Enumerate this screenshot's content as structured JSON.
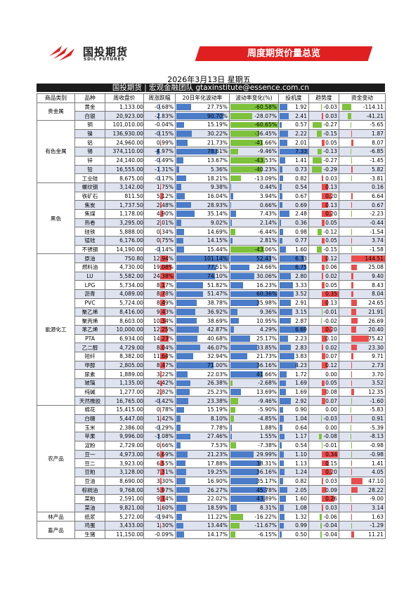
{
  "brand": {
    "name_cn": "国投期货",
    "name_en": "SDIC FUTURES",
    "color": "#e02020"
  },
  "report": {
    "title": "周度期货价量总览",
    "date": "2026年3月13日 星期五",
    "subtitle": "国投期货 | 宏观金融团队 gtaxinstitute@essence.com.cn"
  },
  "table": {
    "headers": [
      "商品类别",
      "品种",
      "周收盘价",
      "周涨跌幅",
      "20日年化波动率",
      "波动率变化(%)",
      "投机度",
      "趋势度",
      "资金变动"
    ],
    "groups": [
      {
        "category": "贵金属",
        "rows": [
          {
            "name": "黄金",
            "close": "1,133.00",
            "chg": "-0.68%",
            "vol": "27.75%",
            "volchg": "-60.58%",
            "spec": "1.92",
            "trend": "-0.03",
            "fund": "-114.11"
          },
          {
            "name": "白银",
            "close": "20,923.00",
            "chg": "-2.83%",
            "vol": "90.70%",
            "volchg": "-28.07%",
            "spec": "2.41",
            "trend": "0.03",
            "fund": "-41.21"
          }
        ]
      },
      {
        "category": "有色金属",
        "rows": [
          {
            "name": "铜",
            "close": "101,010.00",
            "chg": "-0.04%",
            "vol": "15.19%",
            "volchg": "-60.65%",
            "spec": "0.57",
            "trend": "-0.27",
            "fund": "-5.65"
          },
          {
            "name": "镍",
            "close": "136,930.00",
            "chg": "-0.15%",
            "vol": "30.22%",
            "volchg": "-36.45%",
            "spec": "2.22",
            "trend": "-0.15",
            "fund": "1.87"
          },
          {
            "name": "铝",
            "close": "24,960.00",
            "chg": "0.99%",
            "vol": "21.73%",
            "volchg": "-41.66%",
            "spec": "2.01",
            "trend": "0.05",
            "fund": "8.07"
          },
          {
            "name": "锡",
            "close": "374,110.00",
            "chg": "-4.97%",
            "vol": "78.61%",
            "volchg": "-9.46%",
            "spec": "7.33",
            "trend": "-0.13",
            "fund": "-6.85"
          },
          {
            "name": "锌",
            "close": "24,140.00",
            "chg": "-0.49%",
            "vol": "13.67%",
            "volchg": "-43.53%",
            "spec": "1.41",
            "trend": "-0.27",
            "fund": "-1.45"
          },
          {
            "name": "铅",
            "close": "16,555.00",
            "chg": "-1.31%",
            "vol": "5.36%",
            "volchg": "-40.23%",
            "spec": "0.73",
            "trend": "-0.29",
            "fund": "5.82"
          },
          {
            "name": "工业硅",
            "close": "8,675.00",
            "chg": "-0.17%",
            "vol": "18.21%",
            "volchg": "-13.09%",
            "spec": "0.82",
            "trend": "0.03",
            "fund": "-3.81"
          }
        ]
      },
      {
        "category": "黑色",
        "rows": [
          {
            "name": "螺纹钢",
            "close": "3,142.00",
            "chg": "1.75%",
            "vol": "9.38%",
            "volchg": "0.44%",
            "spec": "0.54",
            "trend": "0.13",
            "fund": "0.16"
          },
          {
            "name": "铁矿石",
            "close": "811.50",
            "chg": "5.12%",
            "vol": "16.04%",
            "volchg": "3.94%",
            "spec": "0.67",
            "trend": "0.20",
            "fund": "6.64"
          },
          {
            "name": "焦炭",
            "close": "1,737.50",
            "chg": "2.48%",
            "vol": "28.93%",
            "volchg": "0.66%",
            "spec": "0.69",
            "trend": "0.13",
            "fund": "0.67"
          },
          {
            "name": "焦煤",
            "close": "1,178.00",
            "chg": "4.90%",
            "vol": "35.14%",
            "volchg": "7.43%",
            "spec": "2.48",
            "trend": "0.20",
            "fund": "-2.23"
          },
          {
            "name": "热卷",
            "close": "3,295.00",
            "chg": "2.01%",
            "vol": "9.02%",
            "volchg": "2.14%",
            "spec": "0.36",
            "trend": "0.05",
            "fund": "-0.44"
          },
          {
            "name": "硅铁",
            "close": "5,888.00",
            "chg": "0.34%",
            "vol": "14.69%",
            "volchg": "-6.44%",
            "spec": "0.98",
            "trend": "-0.12",
            "fund": "-1.54"
          },
          {
            "name": "锰硅",
            "close": "6,176.00",
            "chg": "0.75%",
            "vol": "14.15%",
            "volchg": "2.81%",
            "spec": "0.77",
            "trend": "0.05",
            "fund": "3.74"
          },
          {
            "name": "不锈钢",
            "close": "14,190.00",
            "chg": "-0.14%",
            "vol": "15.44%",
            "volchg": "-43.06%",
            "spec": "1.60",
            "trend": "-0.15",
            "fund": "-1.58"
          }
        ]
      },
      {
        "category": "能源化工",
        "rows": [
          {
            "name": "原油",
            "close": "750.80",
            "chg": "12.94%",
            "vol": "101.14%",
            "volchg": "52.43%",
            "spec": "6.33",
            "trend": "0.12",
            "fund": "144.51"
          },
          {
            "name": "燃料油",
            "close": "4,730.00",
            "chg": "19.08%",
            "vol": "77.51%",
            "volchg": "24.66%",
            "spec": "6.75",
            "trend": "0.06",
            "fund": "25.08"
          },
          {
            "name": "LU",
            "close": "5,582.00",
            "chg": "24.38%",
            "vol": "74.10%",
            "volchg": "30.06%",
            "spec": "2.80",
            "trend": "0.02",
            "fund": "9.40"
          },
          {
            "name": "LPG",
            "close": "5,734.00",
            "chg": "8.17%",
            "vol": "51.82%",
            "volchg": "16.23%",
            "spec": "3.33",
            "trend": "0.05",
            "fund": "8.43"
          },
          {
            "name": "沥青",
            "close": "4,089.00",
            "chg": "8.78%",
            "vol": "51.47%",
            "volchg": "60.36%",
            "spec": "3.52",
            "trend": "0.35",
            "fund": "8.04"
          },
          {
            "name": "PVC",
            "close": "5,724.00",
            "chg": "8.49%",
            "vol": "38.78%",
            "volchg": "35.98%",
            "spec": "2.91",
            "trend": "0.13",
            "fund": "24.65"
          },
          {
            "name": "聚乙烯",
            "close": "8,416.00",
            "chg": "9.43%",
            "vol": "36.92%",
            "volchg": "9.36%",
            "spec": "3.15",
            "trend": "-0.01",
            "fund": "21.91"
          },
          {
            "name": "聚丙烯",
            "close": "8,603.00",
            "chg": "10.34%",
            "vol": "38.69%",
            "volchg": "10.95%",
            "spec": "2.87",
            "trend": "-0.02",
            "fund": "26.69"
          },
          {
            "name": "苯乙烯",
            "close": "10,000.00",
            "chg": "12.25%",
            "vol": "42.87%",
            "volchg": "4.29%",
            "spec": "6.69",
            "trend": "0.20",
            "fund": "20.40"
          },
          {
            "name": "PTA",
            "close": "6,934.00",
            "chg": "14.23%",
            "vol": "40.68%",
            "volchg": "25.17%",
            "spec": "2.23",
            "trend": "0.10",
            "fund": "75.42"
          },
          {
            "name": "乙二醇",
            "close": "4,729.00",
            "chg": "8.04%",
            "vol": "46.07%",
            "volchg": "33.85%",
            "spec": "2.83",
            "trend": "0.02",
            "fund": "23.30"
          },
          {
            "name": "短纤",
            "close": "8,382.00",
            "chg": "11.64%",
            "vol": "32.94%",
            "volchg": "21.73%",
            "spec": "3.83",
            "trend": "0.07",
            "fund": "9.71"
          },
          {
            "name": "甲醇",
            "close": "2,805.00",
            "chg": "8.47%",
            "vol": "71.00%",
            "volchg": "36.16%",
            "spec": "4.23",
            "trend": "0.12",
            "fund": "2.73"
          },
          {
            "name": "尿素",
            "close": "1,889.00",
            "chg": "3.22%",
            "vol": "22.03%",
            "volchg": "41.66%",
            "spec": "1.72",
            "trend": "0.00",
            "fund": "3.70"
          },
          {
            "name": "玻璃",
            "close": "1,135.00",
            "chg": "4.42%",
            "vol": "26.38%",
            "volchg": "-2.68%",
            "spec": "1.69",
            "trend": "0.05",
            "fund": "3.52"
          },
          {
            "name": "纯碱",
            "close": "1,277.00",
            "chg": "2.82%",
            "vol": "25.23%",
            "volchg": "13.69%",
            "spec": "1.69",
            "trend": "0.08",
            "fund": "12.35"
          },
          {
            "name": "天然橡胶",
            "close": "16,765.00",
            "chg": "-0.42%",
            "vol": "23.38%",
            "volchg": "-9.46%",
            "spec": "2.92",
            "trend": "0.07",
            "fund": "-1.60"
          }
        ]
      },
      {
        "category": "农产品",
        "rows": [
          {
            "name": "棉花",
            "close": "15,415.00",
            "chg": "0.78%",
            "vol": "15.19%",
            "volchg": "-5.90%",
            "spec": "0.90",
            "trend": "0.00",
            "fund": "-5.83"
          },
          {
            "name": "白糖",
            "close": "5,447.00",
            "chg": "1.42%",
            "vol": "8.10%",
            "volchg": "-4.85%",
            "spec": "1.04",
            "trend": "-0.03",
            "fund": "0.91"
          },
          {
            "name": "玉米",
            "close": "2,386.00",
            "chg": "-0.29%",
            "vol": "7.78%",
            "volchg": "1.88%",
            "spec": "0.64",
            "trend": "0.00",
            "fund": "-5.39"
          },
          {
            "name": "苹果",
            "close": "9,996.00",
            "chg": "-3.08%",
            "vol": "27.46%",
            "volchg": "1.55%",
            "spec": "1.17",
            "trend": "-0.08",
            "fund": "-8.13"
          },
          {
            "name": "淀粉",
            "close": "2,729.00",
            "chg": "0.66%",
            "vol": "7.53%",
            "volchg": "-7.38%",
            "spec": "0.54",
            "trend": "-0.01",
            "fund": "-0.98"
          },
          {
            "name": "豆一",
            "close": "4,973.00",
            "chg": "6.69%",
            "vol": "21.23%",
            "volchg": "29.99%",
            "spec": "1.10",
            "trend": "0.34",
            "fund": "-0.98"
          },
          {
            "name": "豆二",
            "close": "3,923.00",
            "chg": "6.55%",
            "vol": "17.88%",
            "volchg": "38.31%",
            "spec": "1.13",
            "trend": "0.15",
            "fund": "1.41"
          },
          {
            "name": "豆粕",
            "close": "3,128.00",
            "chg": "7.31%",
            "vol": "19.25%",
            "volchg": "36.16%",
            "spec": "1.24",
            "trend": "0.20",
            "fund": "4.05"
          },
          {
            "name": "豆油",
            "close": "8,690.00",
            "chg": "3.30%",
            "vol": "16.90%",
            "volchg": "35.17%",
            "spec": "0.82",
            "trend": "0.03",
            "fund": "47.10"
          },
          {
            "name": "棕榈油",
            "close": "9,768.00",
            "chg": "5.97%",
            "vol": "26.27%",
            "volchg": "45.78%",
            "spec": "2.05",
            "trend": "0.09",
            "fund": "28.22"
          },
          {
            "name": "菜粕",
            "close": "2,591.00",
            "chg": "9.14%",
            "vol": "22.02%",
            "volchg": "43.89%",
            "spec": "1.60",
            "trend": "0.26",
            "fund": "-9.00"
          },
          {
            "name": "菜油",
            "close": "9,821.00",
            "chg": "1.60%",
            "vol": "18.59%",
            "volchg": "8.31%",
            "spec": "1.08",
            "trend": "0.03",
            "fund": "3.14"
          }
        ]
      },
      {
        "category": "林产品",
        "rows": [
          {
            "name": "纸浆",
            "close": "5,272.00",
            "chg": "-0.94%",
            "vol": "11.22%",
            "volchg": "-16.22%",
            "spec": "1.32",
            "trend": "-0.06",
            "fund": "1.63"
          }
        ]
      },
      {
        "category": "畜产品",
        "rows": [
          {
            "name": "鸡蛋",
            "close": "3,433.00",
            "chg": "1.30%",
            "vol": "13.44%",
            "volchg": "-11.67%",
            "spec": "0.99",
            "trend": "-0.04",
            "fund": "-1.29"
          },
          {
            "name": "生猪",
            "close": "11,150.00",
            "chg": "-0.09%",
            "vol": "14.17%",
            "volchg": "-6.15%",
            "spec": "0.50",
            "trend": "-0.04",
            "fund": "11.21"
          }
        ]
      }
    ]
  }
}
